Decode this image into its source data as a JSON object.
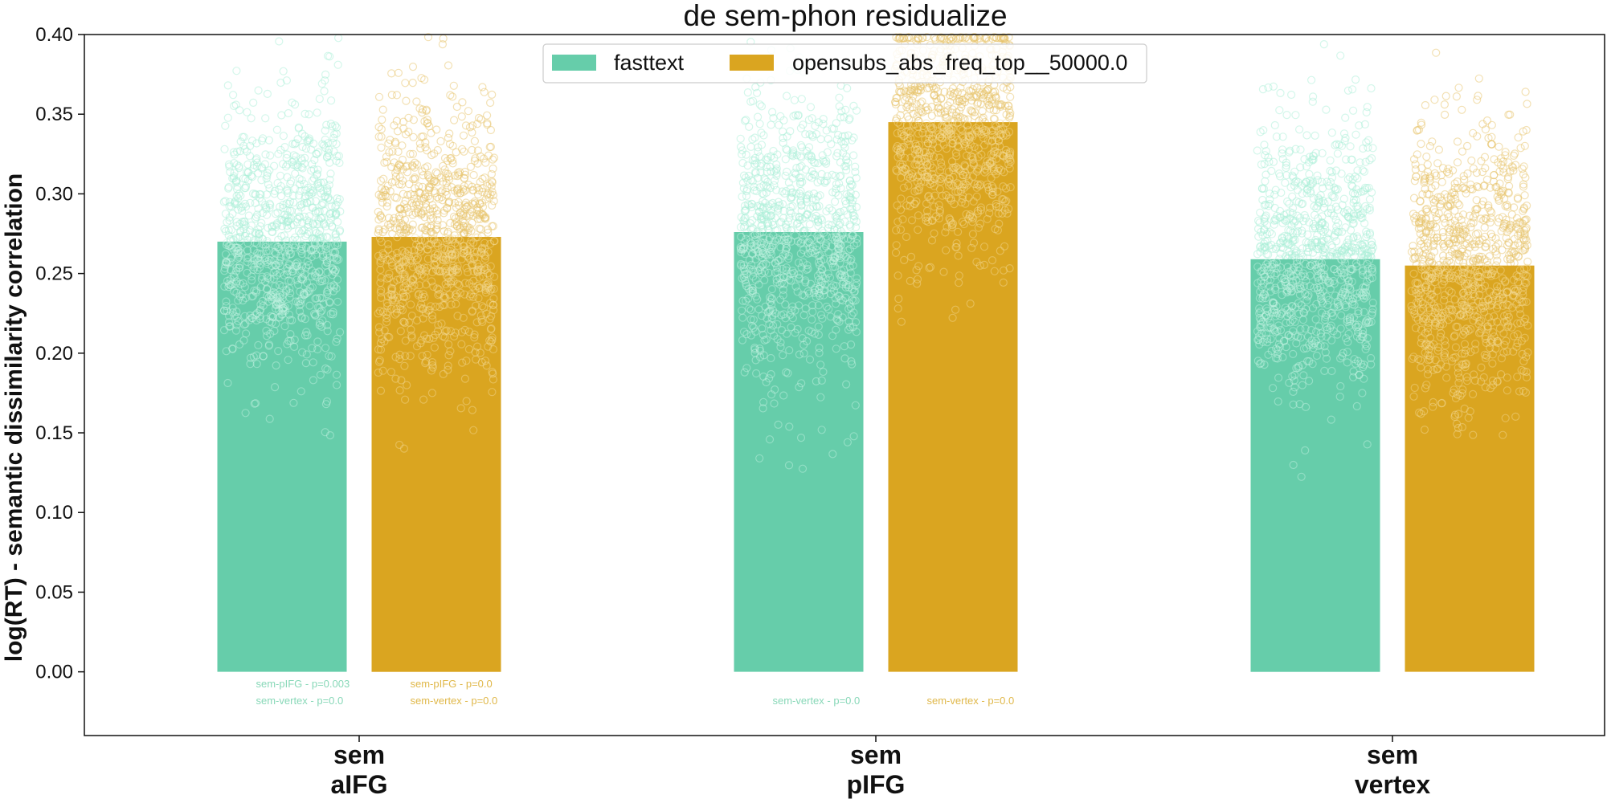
{
  "chart_data": {
    "type": "bar",
    "title": "de sem-phon residualize",
    "ylabel": "log(RT) - semantic dissimilarity correlation",
    "xlabel": "",
    "ylim": [
      -0.04,
      0.4
    ],
    "yticks": [
      "0.00",
      "0.05",
      "0.10",
      "0.15",
      "0.20",
      "0.25",
      "0.30",
      "0.35",
      "0.40"
    ],
    "categories": [
      {
        "line1": "sem",
        "line2": "aIFG"
      },
      {
        "line1": "sem",
        "line2": "pIFG"
      },
      {
        "line1": "sem",
        "line2": "vertex"
      }
    ],
    "series": [
      {
        "name": "fasttext",
        "color": "#66cdaa",
        "values": [
          0.27,
          0.276,
          0.259
        ],
        "scatter_spread": [
          0.042,
          0.044,
          0.043
        ]
      },
      {
        "name": "opensubs_abs_freq_top__50000.0",
        "color": "#daa520",
        "values": [
          0.273,
          0.345,
          0.255
        ],
        "scatter_spread": [
          0.043,
          0.043,
          0.044
        ]
      }
    ],
    "annotations": [
      {
        "series": 0,
        "category": 0,
        "lines": [
          "sem-pIFG - p=0.003",
          "sem-vertex - p=0.0"
        ]
      },
      {
        "series": 1,
        "category": 0,
        "lines": [
          "sem-pIFG - p=0.0",
          "sem-vertex - p=0.0"
        ]
      },
      {
        "series": 0,
        "category": 1,
        "lines": [
          "",
          "sem-vertex - p=0.0"
        ]
      },
      {
        "series": 1,
        "category": 1,
        "lines": [
          "",
          "sem-vertex - p=0.0"
        ]
      }
    ],
    "legend": {
      "placement": "top-center",
      "columns": 2
    },
    "grid": false
  }
}
